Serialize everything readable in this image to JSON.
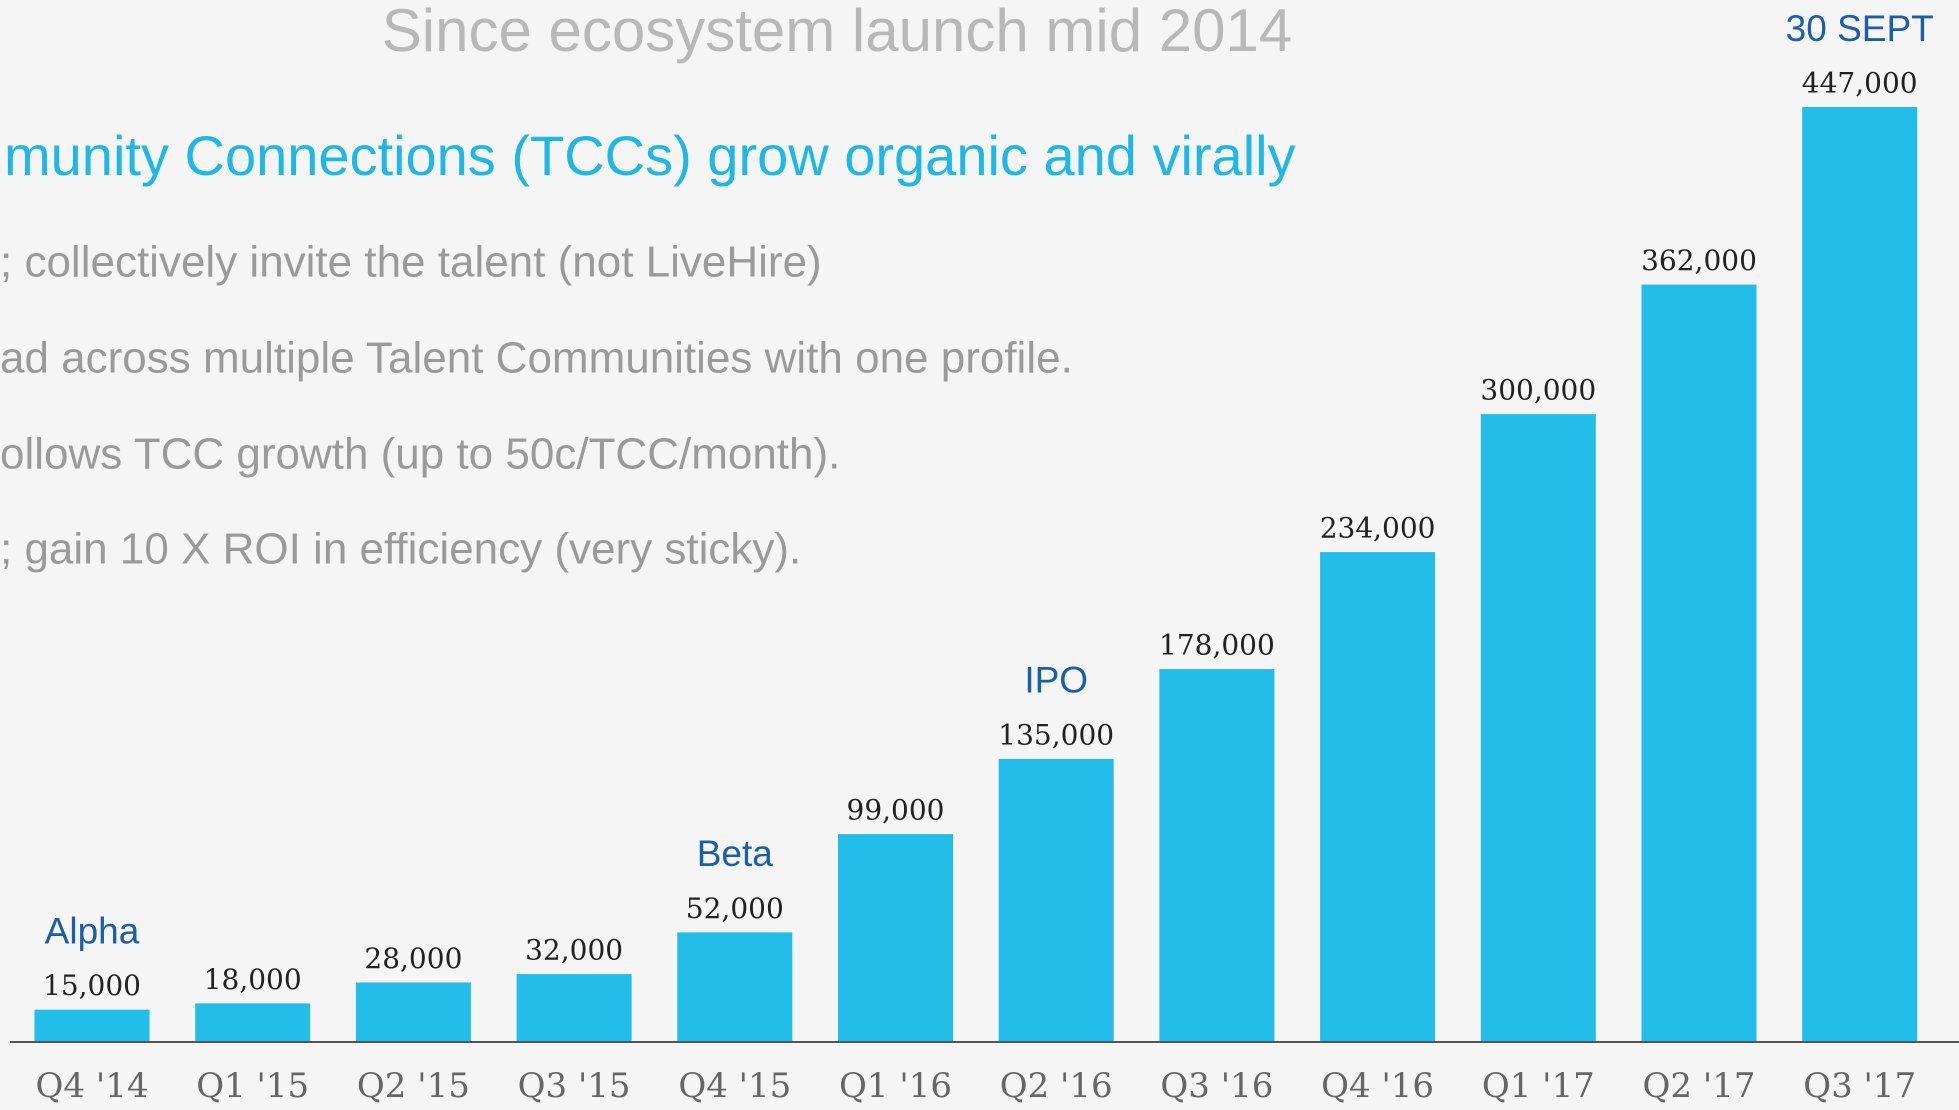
{
  "chart_data": {
    "type": "bar",
    "title": "Since ecosystem launch mid 2014",
    "subtitle": "munity Connections (TCCs) grow organic and virally",
    "notes": [
      "; collectively invite the talent (not LiveHire)",
      "ad across multiple Talent Communities with one profile.",
      "ollows TCC growth (up to 50c/TCC/month).",
      "; gain 10 X ROI in efficiency (very sticky)."
    ],
    "categories": [
      "Q4 '14",
      "Q1 '15",
      "Q2 '15",
      "Q3 '15",
      "Q4 '15",
      "Q1 '16",
      "Q2 '16",
      "Q3 '16",
      "Q4 '16",
      "Q1 '17",
      "Q2 '17",
      "Q3 '17"
    ],
    "values": [
      15000,
      18000,
      28000,
      32000,
      52000,
      99000,
      135000,
      178000,
      234000,
      300000,
      362000,
      447000
    ],
    "value_labels": [
      "15,000",
      "18,000",
      "28,000",
      "32,000",
      "52,000",
      "99,000",
      "135,000",
      "178,000",
      "234,000",
      "300,000",
      "362,000",
      "447,000"
    ],
    "annotations": [
      {
        "category": 0,
        "text": "Alpha"
      },
      {
        "category": 4,
        "text": "Beta"
      },
      {
        "category": 6,
        "text": "IPO"
      },
      {
        "category": 11,
        "text": "30 SEPT"
      }
    ],
    "color": "#22bde9"
  }
}
